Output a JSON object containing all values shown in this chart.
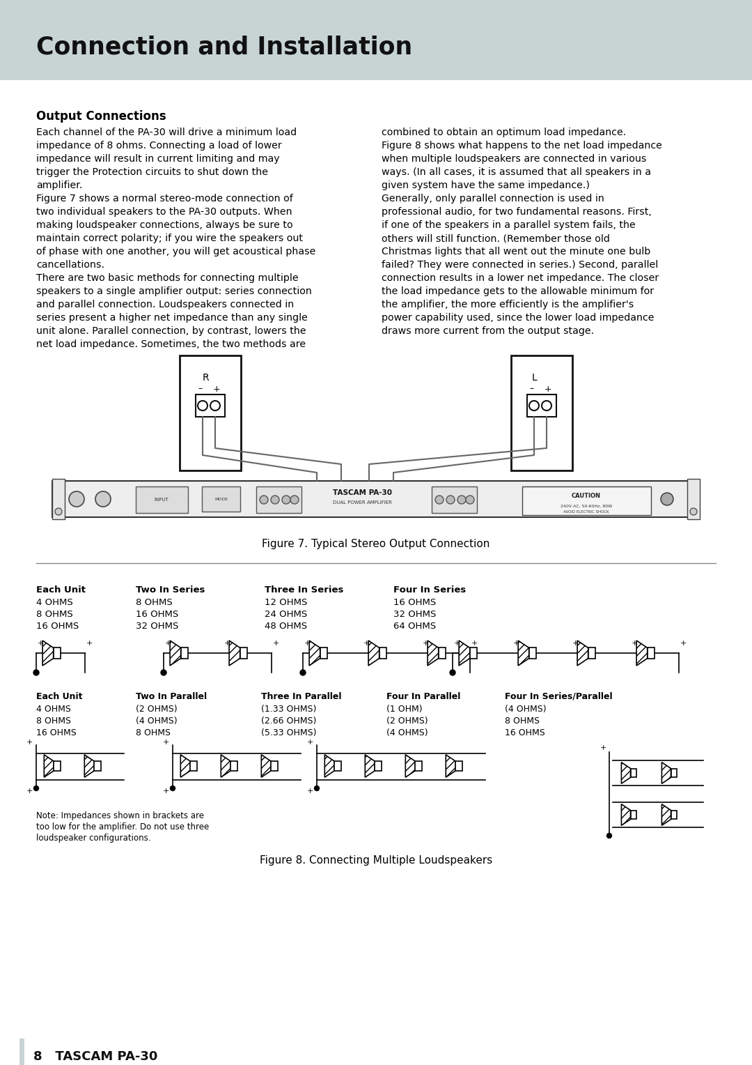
{
  "title": "Connection and Installation",
  "section_header": "Output Connections",
  "body_text_left": [
    "Each channel of the PA-30 will drive a minimum load",
    "impedance of 8 ohms. Connecting a load of lower",
    "impedance will result in current limiting and may",
    "trigger the Protection circuits to shut down the",
    "amplifier.",
    "Figure 7 shows a normal stereo-mode connection of",
    "two individual speakers to the PA-30 outputs. When",
    "making loudspeaker connections, always be sure to",
    "maintain correct polarity; if you wire the speakers out",
    "of phase with one another, you will get acoustical phase",
    "cancellations.",
    "There are two basic methods for connecting multiple",
    "speakers to a single amplifier output: series connection",
    "and parallel connection. Loudspeakers connected in",
    "series present a higher net impedance than any single",
    "unit alone. Parallel connection, by contrast, lowers the",
    "net load impedance. Sometimes, the two methods are"
  ],
  "body_text_right": [
    "combined to obtain an optimum load impedance.",
    "Figure 8 shows what happens to the net load impedance",
    "when multiple loudspeakers are connected in various",
    "ways. (In all cases, it is assumed that all speakers in a",
    "given system have the same impedance.)",
    "Generally, only parallel connection is used in",
    "professional audio, for two fundamental reasons. First,",
    "if one of the speakers in a parallel system fails, the",
    "others will still function. (Remember those old",
    "Christmas lights that all went out the minute one bulb",
    "failed? They were connected in series.) Second, parallel",
    "connection results in a lower net impedance. The closer",
    "the load impedance gets to the allowable minimum for",
    "the amplifier, the more efficiently is the amplifier's",
    "power capability used, since the lower load impedance",
    "draws more current from the output stage."
  ],
  "fig7_caption": "Figure 7. Typical Stereo Output Connection",
  "fig8_caption": "Figure 8. Connecting Multiple Loudspeakers",
  "footer_text": "8   TASCAM PA-30",
  "table_headers_series": [
    "Each Unit",
    "Two In Series",
    "Three In Series",
    "Four In Series"
  ],
  "table_rows_series": [
    [
      "4 OHMS",
      "8 OHMS",
      "12 OHMS",
      "16 OHMS"
    ],
    [
      "8 OHMS",
      "16 OHMS",
      "24 OHMS",
      "32 OHMS"
    ],
    [
      "16 OHMS",
      "32 OHMS",
      "48 OHMS",
      "64 OHMS"
    ]
  ],
  "table_headers_parallel": [
    "Each Unit",
    "Two In Parallel",
    "Three In Parallel",
    "Four In Parallel",
    "Four In Series/Parallel"
  ],
  "table_rows_parallel": [
    [
      "4 OHMS",
      "(2 OHMS)",
      "(1.33 OHMS)",
      "(1 OHM)",
      "(4 OHMS)"
    ],
    [
      "8 OHMS",
      "(4 OHMS)",
      "(2.66 OHMS)",
      "(2 OHMS)",
      "8 OHMS"
    ],
    [
      "16 OHMS",
      "8 OHMS",
      "(5.33 OHMS)",
      "(4 OHMS)",
      "16 OHMS"
    ]
  ],
  "note_text": "Note: Impedances shown in brackets are\ntoo low for the amplifier. Do not use three\nloudspeaker configurations.",
  "bg_color": "#ffffff",
  "text_color": "#000000",
  "header_bg": "#c8d4d4",
  "rule_color": "#888888"
}
